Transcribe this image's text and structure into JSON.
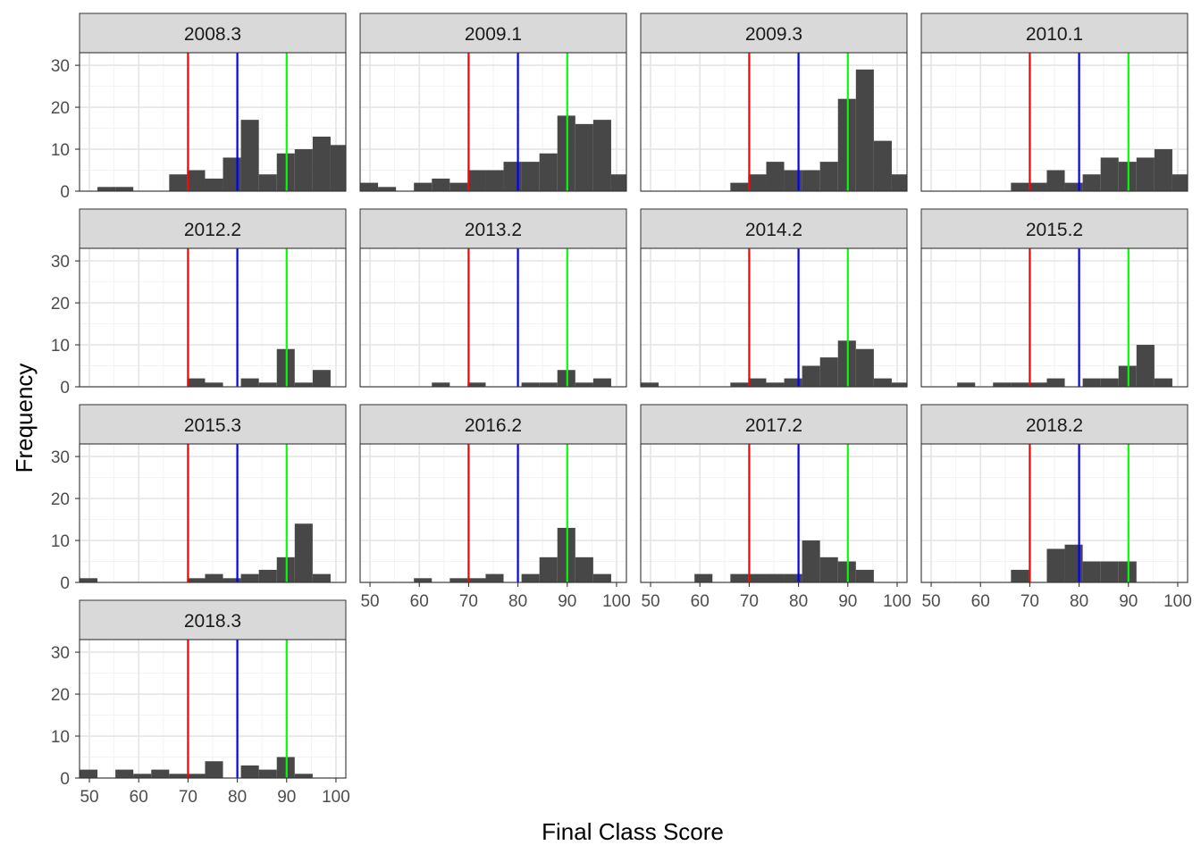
{
  "chart_data": {
    "type": "histogram-faceted",
    "xlabel": "Final Class Score",
    "ylabel": "Frequency",
    "xlim": [
      48,
      102
    ],
    "ylim": [
      0,
      33
    ],
    "x_ticks": [
      50,
      60,
      70,
      80,
      90,
      100
    ],
    "y_ticks": [
      0,
      10,
      20,
      30
    ],
    "bin_edges": [
      48,
      51.636,
      55.273,
      58.909,
      62.545,
      66.182,
      69.818,
      73.455,
      77.091,
      80.727,
      84.364,
      88,
      91.636,
      95.273,
      98.909,
      102.545
    ],
    "grid": true,
    "bar_color": "#474747",
    "reference_lines": [
      {
        "x": 70,
        "color": "#ff0000"
      },
      {
        "x": 80,
        "color": "#0000ff"
      },
      {
        "x": 90,
        "color": "#00ff00"
      }
    ],
    "facets": [
      {
        "label": "2008.3",
        "counts": [
          0,
          1,
          1,
          0,
          0,
          4,
          5,
          3,
          8,
          17,
          4,
          9,
          10,
          13,
          11
        ],
        "x_axis": false
      },
      {
        "label": "2009.1",
        "counts": [
          2,
          1,
          0,
          2,
          3,
          2,
          5,
          5,
          7,
          7,
          9,
          18,
          16,
          17,
          4
        ],
        "x_axis": false
      },
      {
        "label": "2009.3",
        "counts": [
          0,
          0,
          0,
          0,
          0,
          2,
          4,
          7,
          5,
          5,
          7,
          22,
          29,
          12,
          4
        ],
        "x_axis": false
      },
      {
        "label": "2010.1",
        "counts": [
          0,
          0,
          0,
          0,
          0,
          2,
          2,
          5,
          2,
          4,
          8,
          7,
          8,
          10,
          4
        ],
        "x_axis": false
      },
      {
        "label": "2012.2",
        "counts": [
          0,
          0,
          0,
          0,
          0,
          0,
          2,
          1,
          0,
          2,
          1,
          9,
          1,
          4,
          0
        ],
        "x_axis": false
      },
      {
        "label": "2013.2",
        "counts": [
          0,
          0,
          0,
          0,
          1,
          0,
          1,
          0,
          0,
          1,
          1,
          4,
          1,
          2,
          0
        ],
        "x_axis": false
      },
      {
        "label": "2014.2",
        "counts": [
          1,
          0,
          0,
          0,
          0,
          1,
          2,
          1,
          2,
          5,
          7,
          11,
          9,
          2,
          1
        ],
        "x_axis": false
      },
      {
        "label": "2015.2",
        "counts": [
          0,
          0,
          1,
          0,
          1,
          1,
          1,
          2,
          0,
          2,
          2,
          5,
          10,
          2,
          0
        ],
        "x_axis": false
      },
      {
        "label": "2015.3",
        "counts": [
          1,
          0,
          0,
          0,
          0,
          0,
          1,
          2,
          1,
          2,
          3,
          6,
          14,
          2,
          0
        ],
        "x_axis": false
      },
      {
        "label": "2016.2",
        "counts": [
          0,
          0,
          0,
          1,
          0,
          1,
          1,
          2,
          0,
          2,
          6,
          13,
          6,
          2,
          0
        ],
        "x_axis": true
      },
      {
        "label": "2017.2",
        "counts": [
          0,
          0,
          0,
          2,
          0,
          2,
          2,
          2,
          2,
          10,
          6,
          5,
          3,
          0,
          0
        ],
        "x_axis": true
      },
      {
        "label": "2018.2",
        "counts": [
          0,
          0,
          0,
          0,
          0,
          3,
          0,
          8,
          9,
          5,
          5,
          5,
          0,
          0,
          0
        ],
        "x_axis": true
      },
      {
        "label": "2018.3",
        "counts": [
          2,
          0,
          2,
          1,
          2,
          1,
          1,
          4,
          0,
          3,
          2,
          5,
          1,
          0,
          0
        ],
        "x_axis": true
      }
    ]
  }
}
